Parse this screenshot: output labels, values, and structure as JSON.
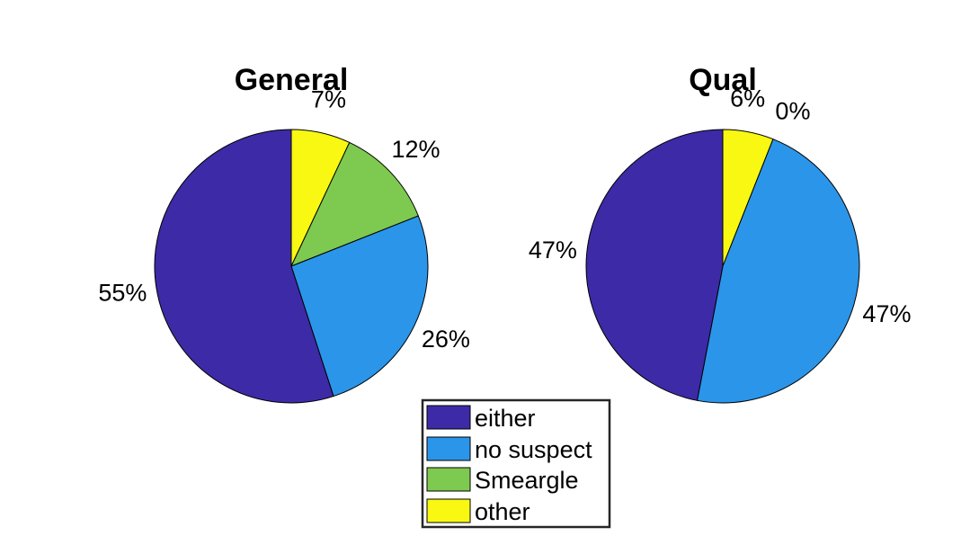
{
  "chart_data": {
    "type": "pie",
    "legend": {
      "placement": "bottom-center",
      "entries": [
        {
          "label": "either",
          "color": "#3d2aa6"
        },
        {
          "label": "no suspect",
          "color": "#2b95e9"
        },
        {
          "label": "Smeargle",
          "color": "#7ec94f"
        },
        {
          "label": "other",
          "color": "#f8f813"
        }
      ]
    },
    "charts": [
      {
        "title": "General",
        "slices": [
          {
            "name": "other",
            "value": 7,
            "label": "7%",
            "color": "#f8f813"
          },
          {
            "name": "Smeargle",
            "value": 12,
            "label": "12%",
            "color": "#7ec94f"
          },
          {
            "name": "no suspect",
            "value": 26,
            "label": "26%",
            "color": "#2b95e9"
          },
          {
            "name": "either",
            "value": 55,
            "label": "55%",
            "color": "#3d2aa6"
          }
        ]
      },
      {
        "title": "Qual",
        "slices": [
          {
            "name": "other",
            "value": 6,
            "label": "6%",
            "color": "#f8f813"
          },
          {
            "name": "Smeargle",
            "value": 0,
            "label": "0%",
            "color": "#7ec94f"
          },
          {
            "name": "no suspect",
            "value": 47,
            "label": "47%",
            "color": "#2b95e9"
          },
          {
            "name": "either",
            "value": 47,
            "label": "47%",
            "color": "#3d2aa6"
          }
        ]
      }
    ]
  }
}
